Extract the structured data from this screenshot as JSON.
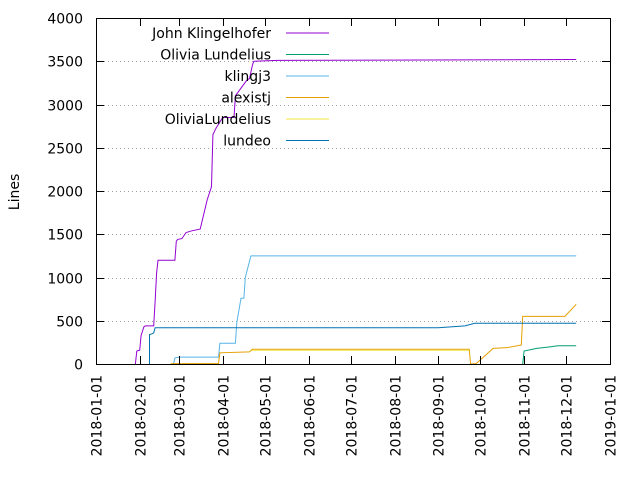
{
  "chart_data": {
    "type": "line",
    "title": "",
    "xlabel": "",
    "ylabel": "Lines",
    "ylim": [
      0,
      4000
    ],
    "xlim": [
      "2018-01-01",
      "2019-01-01"
    ],
    "yticks": [
      0,
      500,
      1000,
      1500,
      2000,
      2500,
      3000,
      3500,
      4000
    ],
    "xticks": [
      "2018-01-01",
      "2018-02-01",
      "2018-03-01",
      "2018-04-01",
      "2018-05-01",
      "2018-06-01",
      "2018-07-01",
      "2018-08-01",
      "2018-09-01",
      "2018-10-01",
      "2018-11-01",
      "2018-12-01",
      "2019-01-01"
    ],
    "grid": "horizontal dotted",
    "legend_position": "top-left",
    "series": [
      {
        "name": "John Klingelhofer",
        "color": "#9400d3",
        "points": [
          [
            "2018-01-29",
            0
          ],
          [
            "2018-01-30",
            150
          ],
          [
            "2018-02-01",
            160
          ],
          [
            "2018-02-02",
            330
          ],
          [
            "2018-02-04",
            430
          ],
          [
            "2018-02-05",
            440
          ],
          [
            "2018-02-11",
            440
          ],
          [
            "2018-02-12",
            720
          ],
          [
            "2018-02-13",
            1050
          ],
          [
            "2018-02-14",
            1200
          ],
          [
            "2018-02-26",
            1200
          ],
          [
            "2018-02-27",
            1420
          ],
          [
            "2018-02-28",
            1440
          ],
          [
            "2018-03-03",
            1450
          ],
          [
            "2018-03-06",
            1520
          ],
          [
            "2018-03-10",
            1540
          ],
          [
            "2018-03-16",
            1560
          ],
          [
            "2018-03-21",
            1900
          ],
          [
            "2018-03-24",
            2050
          ],
          [
            "2018-03-25",
            2650
          ],
          [
            "2018-03-27",
            2720
          ],
          [
            "2018-04-01",
            2850
          ],
          [
            "2018-04-09",
            2850
          ],
          [
            "2018-04-10",
            3100
          ],
          [
            "2018-04-18",
            3280
          ],
          [
            "2018-04-20",
            3300
          ],
          [
            "2018-04-22",
            3450
          ],
          [
            "2018-04-23",
            3500
          ],
          [
            "2018-05-10",
            3510
          ],
          [
            "2018-12-08",
            3520
          ]
        ]
      },
      {
        "name": "Olivia Lundelius",
        "color": "#009e73",
        "points": [
          [
            "2018-10-31",
            0
          ],
          [
            "2018-11-01",
            150
          ],
          [
            "2018-11-10",
            180
          ],
          [
            "2018-11-20",
            200
          ],
          [
            "2018-11-25",
            210
          ],
          [
            "2018-12-08",
            210
          ]
        ]
      },
      {
        "name": "klingj3",
        "color": "#56b4e9",
        "points": [
          [
            "2018-02-25",
            0
          ],
          [
            "2018-02-26",
            70
          ],
          [
            "2018-03-01",
            80
          ],
          [
            "2018-03-29",
            80
          ],
          [
            "2018-03-30",
            240
          ],
          [
            "2018-04-10",
            240
          ],
          [
            "2018-04-11",
            480
          ],
          [
            "2018-04-14",
            760
          ],
          [
            "2018-04-16",
            760
          ],
          [
            "2018-04-17",
            1000
          ],
          [
            "2018-04-21",
            1250
          ],
          [
            "2018-12-08",
            1250
          ]
        ]
      },
      {
        "name": "alexistj",
        "color": "#e69f00",
        "points": [
          [
            "2018-02-23",
            0
          ],
          [
            "2018-02-24",
            5
          ],
          [
            "2018-03-29",
            5
          ],
          [
            "2018-03-30",
            130
          ],
          [
            "2018-04-20",
            140
          ],
          [
            "2018-04-22",
            170
          ],
          [
            "2018-09-23",
            170
          ],
          [
            "2018-09-24",
            0
          ],
          [
            "2018-09-28",
            5
          ],
          [
            "2018-10-10",
            180
          ],
          [
            "2018-10-20",
            190
          ],
          [
            "2018-10-30",
            220
          ],
          [
            "2018-10-31",
            550
          ],
          [
            "2018-11-30",
            550
          ],
          [
            "2018-12-08",
            690
          ]
        ]
      },
      {
        "name": "OliviaLundelius",
        "color": "#f0e442",
        "points": [
          [
            "2018-04-22",
            160
          ],
          [
            "2018-09-23",
            160
          ]
        ]
      },
      {
        "name": "lundeo",
        "color": "#0072b2",
        "points": [
          [
            "2018-02-08",
            0
          ],
          [
            "2018-02-08",
            340
          ],
          [
            "2018-02-10",
            350
          ],
          [
            "2018-02-11",
            360
          ],
          [
            "2018-02-12",
            420
          ],
          [
            "2018-08-15",
            420
          ],
          [
            "2018-09-01",
            420
          ],
          [
            "2018-09-20",
            440
          ],
          [
            "2018-09-27",
            470
          ],
          [
            "2018-12-08",
            470
          ]
        ]
      }
    ]
  }
}
